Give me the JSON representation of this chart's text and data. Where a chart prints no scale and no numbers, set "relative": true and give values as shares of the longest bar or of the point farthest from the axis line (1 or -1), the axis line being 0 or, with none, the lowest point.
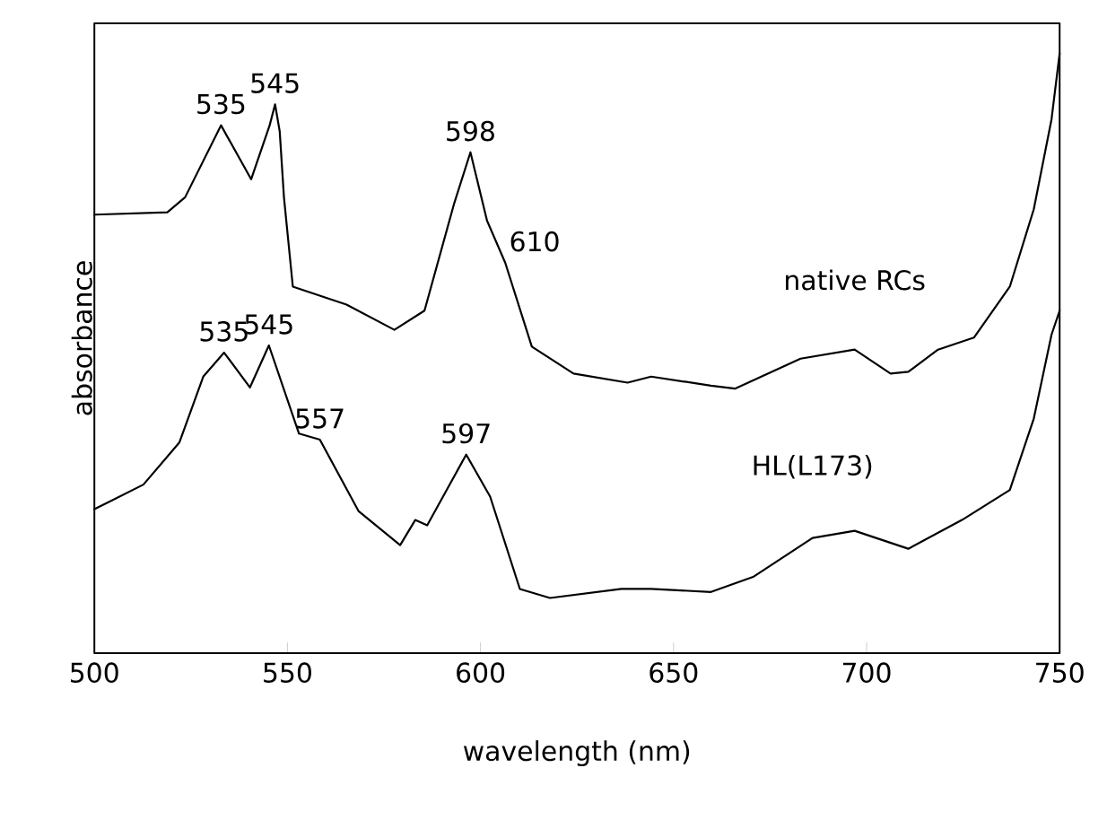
{
  "chart_data": {
    "type": "line",
    "relative": true,
    "xlabel": "wavelength (nm)",
    "ylabel": "absorbance",
    "xlim": [
      500,
      750
    ],
    "xticks": [
      500,
      550,
      600,
      650,
      700,
      750
    ],
    "grid": false,
    "legend": false,
    "marker": "none",
    "line_style": "solid",
    "series": [
      {
        "name": "native RCs",
        "color": "#000000",
        "x": [
          500,
          518.9,
          523.5,
          532.8,
          540.6,
          545.4,
          546.8,
          548,
          549.1,
          551.4,
          565.3,
          577.7,
          585.5,
          593.2,
          597.4,
          601.7,
          606.4,
          613.3,
          624.1,
          638.1,
          644.2,
          659.7,
          665.9,
          682.9,
          696.9,
          706.2,
          710.8,
          718.5,
          727.8,
          737.1,
          743.3,
          747.9,
          750
        ],
        "values": [
          0.731,
          0.735,
          0.76,
          0.88,
          0.79,
          0.88,
          0.915,
          0.87,
          0.76,
          0.611,
          0.581,
          0.539,
          0.571,
          0.75,
          0.835,
          0.721,
          0.651,
          0.511,
          0.466,
          0.451,
          0.461,
          0.446,
          0.441,
          0.491,
          0.506,
          0.466,
          0.469,
          0.506,
          0.526,
          0.611,
          0.74,
          0.89,
          1.0
        ]
      },
      {
        "name": "HL(L173)",
        "color": "#000000",
        "x": [
          500,
          503.4,
          512.7,
          522,
          528.2,
          533.6,
          540.3,
          545.2,
          553,
          558.4,
          568.4,
          579.2,
          583.1,
          586.2,
          596.3,
          602.5,
          610.2,
          618,
          636.5,
          644.2,
          659.7,
          670.6,
          686,
          696.9,
          710.8,
          724.7,
          737.1,
          743.3,
          747.9,
          750
        ],
        "values": [
          0.24,
          0.251,
          0.281,
          0.351,
          0.461,
          0.501,
          0.443,
          0.513,
          0.366,
          0.356,
          0.237,
          0.18,
          0.222,
          0.213,
          0.331,
          0.261,
          0.107,
          0.092,
          0.107,
          0.107,
          0.102,
          0.127,
          0.192,
          0.204,
          0.174,
          0.222,
          0.272,
          0.391,
          0.531,
          0.571
        ]
      }
    ],
    "annotations": [
      {
        "text": "535",
        "x": 532.8,
        "y": 0.88
      },
      {
        "text": "545",
        "x": 546.8,
        "y": 0.915
      },
      {
        "text": "598",
        "x": 597.4,
        "y": 0.835
      },
      {
        "text": "610",
        "x": 606.4,
        "y": 0.651
      },
      {
        "text": "535",
        "x": 533.6,
        "y": 0.501
      },
      {
        "text": "545",
        "x": 545.2,
        "y": 0.513
      },
      {
        "text": "557",
        "x": 558.4,
        "y": 0.356
      },
      {
        "text": "597",
        "x": 596.3,
        "y": 0.331
      }
    ]
  }
}
